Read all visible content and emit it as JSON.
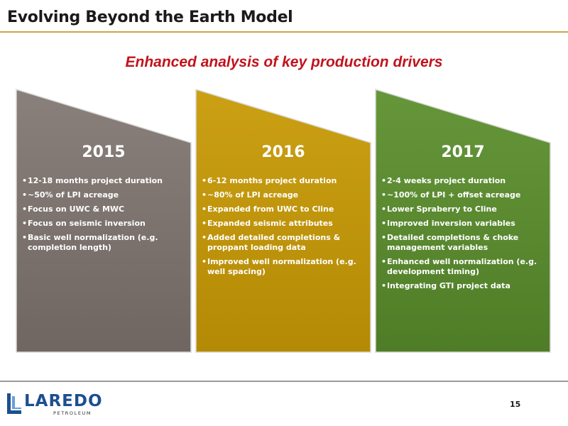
{
  "header": {
    "title": "Evolving Beyond the Earth Model"
  },
  "subtitle": "Enhanced analysis of key production drivers",
  "panels": [
    {
      "year": "2015",
      "color": "#7a706c",
      "bullets": [
        "12-18 months project duration",
        "~50% of LPI acreage",
        "Focus on UWC & MWC",
        "Focus on seismic inversion",
        "Basic well normalization (e.g. completion length)"
      ]
    },
    {
      "year": "2016",
      "color": "#c09408",
      "bullets": [
        "6-12 months project duration",
        "~80% of LPI acreage",
        "Expanded from UWC to Cline",
        "Expanded seismic attributes",
        "Added detailed completions & proppant loading data",
        "Improved well normalization (e.g. well spacing)"
      ]
    },
    {
      "year": "2017",
      "color": "#5a8a2e",
      "bullets": [
        "2-4 weeks project duration",
        "~100% of LPI + offset acreage",
        "Lower Spraberry to Cline",
        "Improved inversion variables",
        "Detailed completions & choke management variables",
        "Enhanced well normalization (e.g. development timing)",
        "Integrating GTI project data"
      ]
    }
  ],
  "footer": {
    "logo_text": "LAREDO",
    "logo_subtext": "PETROLEUM",
    "page_number": "15"
  }
}
